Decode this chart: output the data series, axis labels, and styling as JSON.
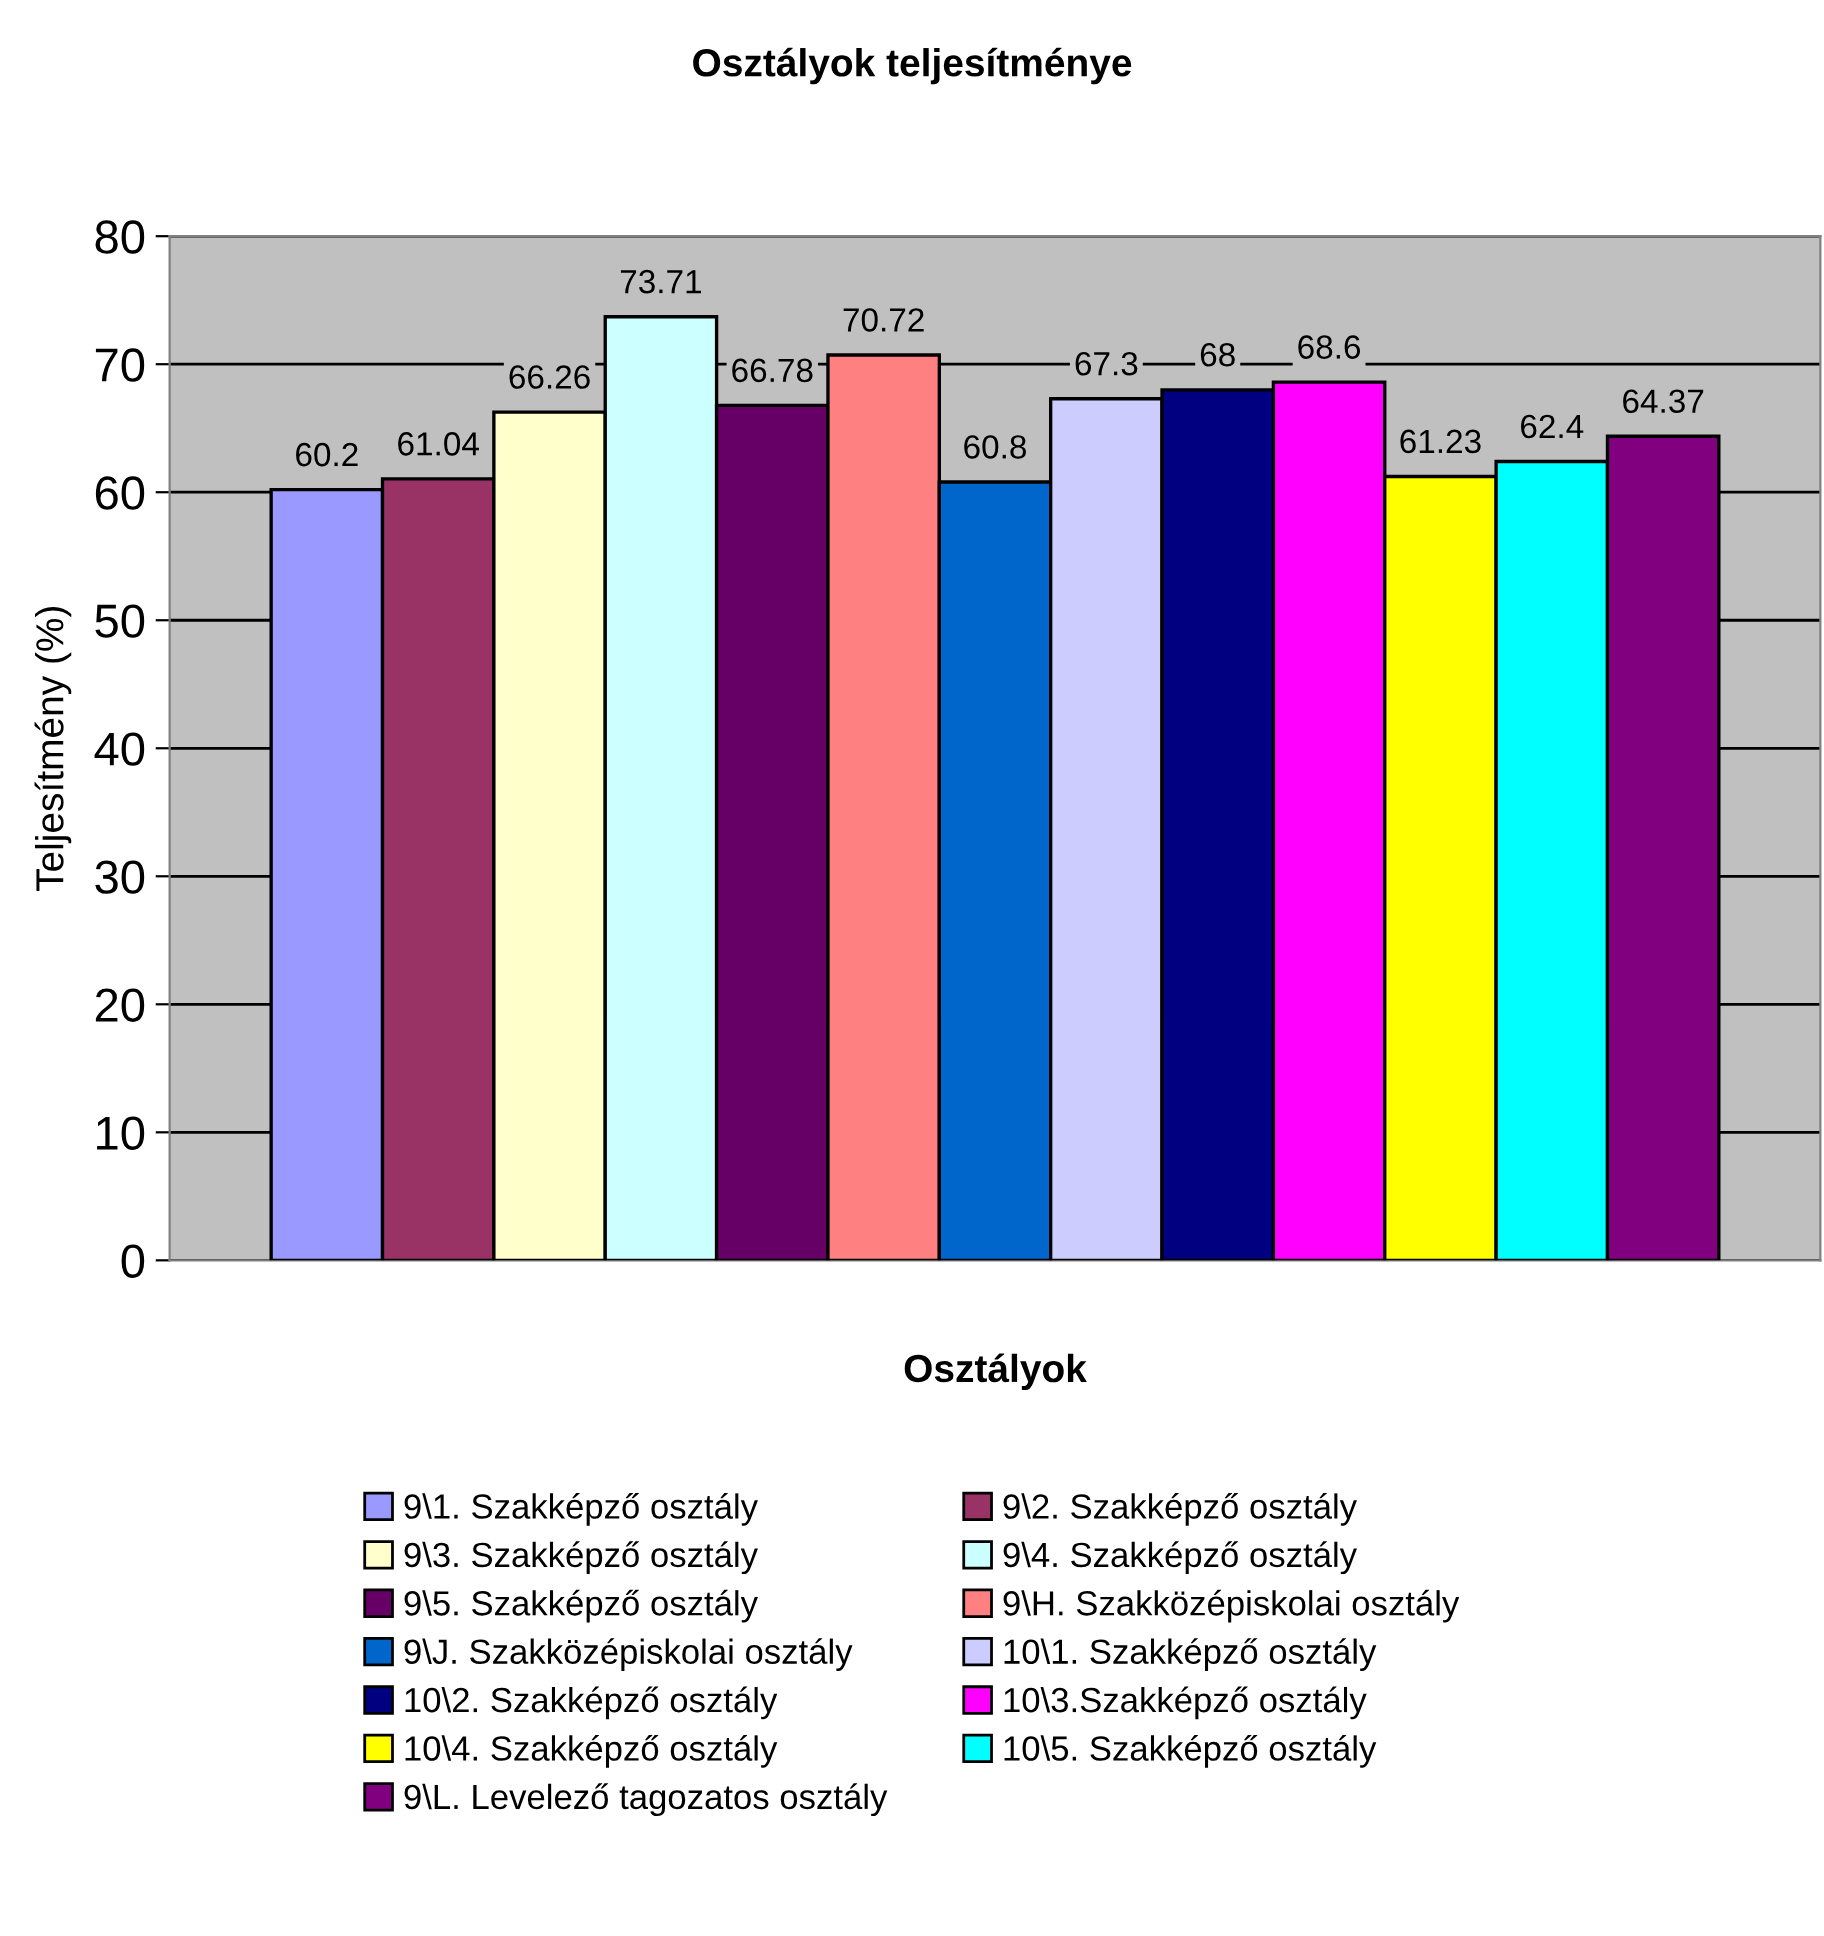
{
  "chart_data": {
    "type": "bar",
    "title": "Osztályok teljesítménye",
    "xlabel": "Osztályok",
    "ylabel": "Teljesítmény (%)",
    "categories": [
      null
    ],
    "series": [
      {
        "name": "9\\1. Szakképző osztály",
        "color": "#9999ff",
        "values": [
          60.2
        ]
      },
      {
        "name": "9\\2. Szakképző osztály",
        "color": "#993366",
        "values": [
          61.04
        ]
      },
      {
        "name": "9\\3. Szakképző osztály",
        "color": "#ffffcc",
        "values": [
          66.26
        ]
      },
      {
        "name": "9\\4. Szakképző osztály",
        "color": "#ccffff",
        "values": [
          73.71
        ]
      },
      {
        "name": "9\\5. Szakképző osztály",
        "color": "#660066",
        "values": [
          66.78
        ]
      },
      {
        "name": "9\\H. Szakközépiskolai osztály",
        "color": "#ff8080",
        "values": [
          70.72
        ]
      },
      {
        "name": "9\\J. Szakközépiskolai osztály",
        "color": "#0066cc",
        "values": [
          60.8
        ]
      },
      {
        "name": "10\\1. Szakképző osztály",
        "color": "#ccccff",
        "values": [
          67.3
        ]
      },
      {
        "name": "10\\2. Szakképző osztály",
        "color": "#000080",
        "values": [
          68
        ]
      },
      {
        "name": "10\\3.Szakképző osztály",
        "color": "#ff00ff",
        "values": [
          68.6
        ]
      },
      {
        "name": "10\\4. Szakképző osztály",
        "color": "#ffff00",
        "values": [
          61.23
        ]
      },
      {
        "name": "10\\5. Szakképző osztály",
        "color": "#00ffff",
        "values": [
          62.4
        ]
      },
      {
        "name": "9\\L. Levelező tagozatos osztály",
        "color": "#800080",
        "values": [
          64.37
        ]
      }
    ],
    "ylim": [
      0,
      80
    ],
    "yticks": [
      0,
      10,
      20,
      30,
      40,
      50,
      60,
      70,
      80
    ],
    "grid": "y",
    "legend": "bottom",
    "data_labels": true
  }
}
